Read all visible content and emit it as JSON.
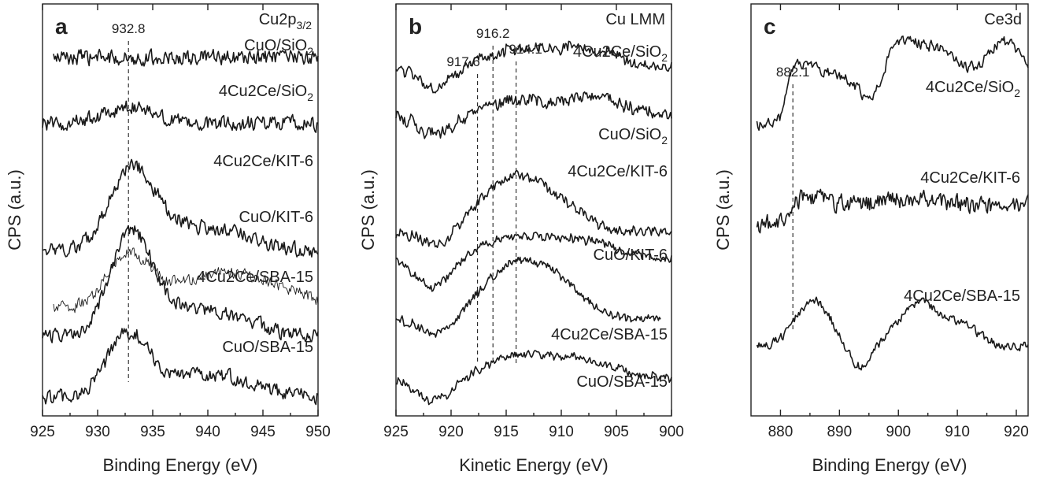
{
  "colors": {
    "trace": "#1a1a1a",
    "axes": "#222222",
    "background": "#ffffff"
  },
  "chart_data": [
    {
      "type": "line",
      "panel_letter": "a",
      "title": "Cu2p3/2",
      "title_main": "Cu2p",
      "title_sub": "3/2",
      "xlabel": "Binding Energy (eV)",
      "ylabel": "CPS (a.u.)",
      "xlim": [
        925,
        950
      ],
      "x_reversed": false,
      "x_ticks": [
        925,
        930,
        935,
        940,
        945,
        950
      ],
      "y_ticks_labeled": false,
      "markers": [
        {
          "x": 932.8,
          "label": "932.8"
        }
      ],
      "series": [
        {
          "name": "CuO/SiO2",
          "label_main": "CuO/SiO",
          "label_sub": "2",
          "x_range": [
            926,
            950
          ],
          "offset": 5.2,
          "peaks": [],
          "noise": 0.16,
          "thin": false
        },
        {
          "name": "4Cu2Ce/SiO2",
          "label_main": "4Cu2Ce/SiO",
          "label_sub": "2",
          "x_range": [
            925,
            950
          ],
          "offset": 4.2,
          "peaks": [
            {
              "x": 932.8,
              "height": 0.25,
              "width": 2.0
            }
          ],
          "noise": 0.16,
          "thin": false
        },
        {
          "name": "4Cu2Ce/KIT-6",
          "label_main": "4Cu2Ce/KIT-6",
          "label_sub": "",
          "x_range": [
            925,
            950
          ],
          "offset": 2.25,
          "peaks": [
            {
              "x": 933.0,
              "height": 1.15,
              "width": 2.0
            },
            {
              "x": 937.0,
              "height": 0.35,
              "width": 3.0
            },
            {
              "x": 942.5,
              "height": 0.22,
              "width": 2.5
            }
          ],
          "noise": 0.15,
          "thin": false
        },
        {
          "name": "CuO/KIT-6",
          "label_main": "CuO/KIT-6",
          "label_sub": "",
          "x_range": [
            926,
            950
          ],
          "offset": 1.35,
          "peaks": [
            {
              "x": 932.8,
              "height": 0.75,
              "width": 2.0
            },
            {
              "x": 942.0,
              "height": 0.55,
              "width": 5.0
            }
          ],
          "noise": 0.14,
          "thin": true
        },
        {
          "name": "4Cu2Ce/SBA-15",
          "label_main": "4Cu2Ce/SBA-15",
          "label_sub": "",
          "x_range": [
            925,
            950
          ],
          "offset": 0.95,
          "peaks": [
            {
              "x": 933.0,
              "height": 1.5,
              "width": 1.9
            },
            {
              "x": 937.5,
              "height": 0.35,
              "width": 3.0
            },
            {
              "x": 942.5,
              "height": 0.22,
              "width": 2.5
            }
          ],
          "noise": 0.15,
          "thin": false
        },
        {
          "name": "CuO/SBA-15",
          "label_main": "CuO/SBA-15",
          "label_sub": "",
          "x_range": [
            925,
            950
          ],
          "offset": 0.0,
          "peaks": [
            {
              "x": 932.8,
              "height": 0.95,
              "width": 1.9
            },
            {
              "x": 940.0,
              "height": 0.35,
              "width": 4.0
            }
          ],
          "noise": 0.15,
          "thin": false
        }
      ]
    },
    {
      "type": "line",
      "panel_letter": "b",
      "title": "Cu LMM",
      "title_main": "Cu LMM",
      "title_sub": "",
      "xlabel": "Kinetic Energy (eV)",
      "ylabel": "CPS (a.u.)",
      "xlim": [
        925,
        900
      ],
      "x_reversed": true,
      "x_ticks": [
        925,
        920,
        915,
        910,
        905,
        900
      ],
      "y_ticks_labeled": false,
      "markers": [
        {
          "x": 917.6,
          "label": "917.6"
        },
        {
          "x": 916.2,
          "label": "916.2"
        },
        {
          "x": 914.1,
          "label": "914.1"
        }
      ],
      "series": [
        {
          "name": "4Cu2Ce/SiO2",
          "label_main": "4Cu2Ce/SiO",
          "label_sub": "2",
          "x_range": [
            900,
            925
          ],
          "offset": 5.1,
          "peaks": [
            {
              "x": 914.0,
              "height": 0.25,
              "width": 3.0
            },
            {
              "x": 908.0,
              "height": 0.25,
              "width": 3.0
            }
          ],
          "dip": {
            "x": 921.5,
            "depth": 0.35,
            "width": 1.6
          },
          "noise": 0.13,
          "thin": false
        },
        {
          "name": "CuO/SiO2",
          "label_main": "CuO/SiO",
          "label_sub": "2",
          "x_range": [
            900,
            925
          ],
          "offset": 4.3,
          "peaks": [
            {
              "x": 914.0,
              "height": 0.25,
              "width": 2.5
            },
            {
              "x": 907.0,
              "height": 0.3,
              "width": 2.5
            }
          ],
          "dip": {
            "x": 921.5,
            "depth": 0.3,
            "width": 1.6
          },
          "noise": 0.15,
          "thin": false
        },
        {
          "name": "4Cu2Ce/KIT-6",
          "label_main": "4Cu2Ce/KIT-6",
          "label_sub": "",
          "x_range": [
            900,
            925
          ],
          "offset": 2.4,
          "peaks": [
            {
              "x": 914.5,
              "height": 0.85,
              "width": 3.0
            },
            {
              "x": 910.0,
              "height": 0.3,
              "width": 2.5
            }
          ],
          "dip": {
            "x": 921.0,
            "depth": 0.25,
            "width": 1.6
          },
          "noise": 0.12,
          "thin": false
        },
        {
          "name": "CuO/KIT-6",
          "label_main": "CuO/KIT-6",
          "label_sub": "",
          "x_range": [
            900,
            925
          ],
          "offset": 1.95,
          "peaks": [
            {
              "x": 914.5,
              "height": 0.35,
              "width": 3.0
            },
            {
              "x": 908.0,
              "height": 0.3,
              "width": 3.0
            }
          ],
          "dip": {
            "x": 921.5,
            "depth": 0.45,
            "width": 1.6
          },
          "noise": 0.1,
          "thin": false
        },
        {
          "name": "4Cu2Ce/SBA-15",
          "label_main": "4Cu2Ce/SBA-15",
          "label_sub": "",
          "x_range": [
            901,
            925
          ],
          "offset": 1.0,
          "peaks": [
            {
              "x": 914.2,
              "height": 0.85,
              "width": 3.0
            },
            {
              "x": 910.0,
              "height": 0.35,
              "width": 2.5
            }
          ],
          "dip": {
            "x": 921.0,
            "depth": 0.3,
            "width": 1.6
          },
          "noise": 0.1,
          "thin": false
        },
        {
          "name": "CuO/SBA-15",
          "label_main": "CuO/SBA-15",
          "label_sub": "",
          "x_range": [
            900,
            925
          ],
          "offset": 0.0,
          "peaks": [
            {
              "x": 914.0,
              "height": 0.35,
              "width": 3.0
            },
            {
              "x": 908.0,
              "height": 0.3,
              "width": 3.0
            }
          ],
          "dip": {
            "x": 921.5,
            "depth": 0.35,
            "width": 1.6
          },
          "noise": 0.1,
          "thin": false
        }
      ]
    },
    {
      "type": "line",
      "panel_letter": "c",
      "title": "Ce3d",
      "title_main": "Ce3d",
      "title_sub": "",
      "xlabel": "Binding Energy (eV)",
      "ylabel": "CPS (a.u.)",
      "xlim": [
        875,
        922
      ],
      "x_reversed": false,
      "x_ticks": [
        880,
        890,
        900,
        910,
        920
      ],
      "y_ticks_labeled": false,
      "markers": [
        {
          "x": 882.1,
          "label": "882.1"
        }
      ],
      "series": [
        {
          "name": "4Cu2Ce/SiO2",
          "label_main": "4Cu2Ce/SiO",
          "label_sub": "2",
          "x_range": [
            876,
            922
          ],
          "offset": 3.6,
          "steps": [
            {
              "x": 881.0,
              "height": 0.75
            }
          ],
          "peaks": [
            {
              "x": 884.0,
              "height": 0.25,
              "width": 3.0
            },
            {
              "x": 900.5,
              "height": 0.6,
              "width": 3.0
            },
            {
              "x": 907.0,
              "height": 0.45,
              "width": 3.0
            },
            {
              "x": 918.0,
              "height": 0.6,
              "width": 3.0
            }
          ],
          "dip": {
            "x": 895.5,
            "depth": 0.45,
            "width": 1.8
          },
          "noise": 0.12,
          "thin": false
        },
        {
          "name": "4Cu2Ce/KIT-6",
          "label_main": "4Cu2Ce/KIT-6",
          "label_sub": "",
          "x_range": [
            876,
            922
          ],
          "offset": 2.0,
          "steps": [
            {
              "x": 881.5,
              "height": 0.3
            }
          ],
          "peaks": [
            {
              "x": 885.0,
              "height": 0.12,
              "width": 3.0
            },
            {
              "x": 903.0,
              "height": 0.12,
              "width": 4.0
            }
          ],
          "noise": 0.2,
          "thin": false
        },
        {
          "name": "4Cu2Ce/SBA-15",
          "label_main": "4Cu2Ce/SBA-15",
          "label_sub": "",
          "x_range": [
            876,
            922
          ],
          "offset": 0.0,
          "steps": [],
          "peaks": [
            {
              "x": 885.5,
              "height": 0.75,
              "width": 3.0
            },
            {
              "x": 903.5,
              "height": 0.7,
              "width": 3.5
            },
            {
              "x": 911.0,
              "height": 0.3,
              "width": 3.0
            }
          ],
          "dip": {
            "x": 893.5,
            "depth": 0.35,
            "width": 1.8
          },
          "noise": 0.1,
          "thin": false
        }
      ]
    }
  ]
}
